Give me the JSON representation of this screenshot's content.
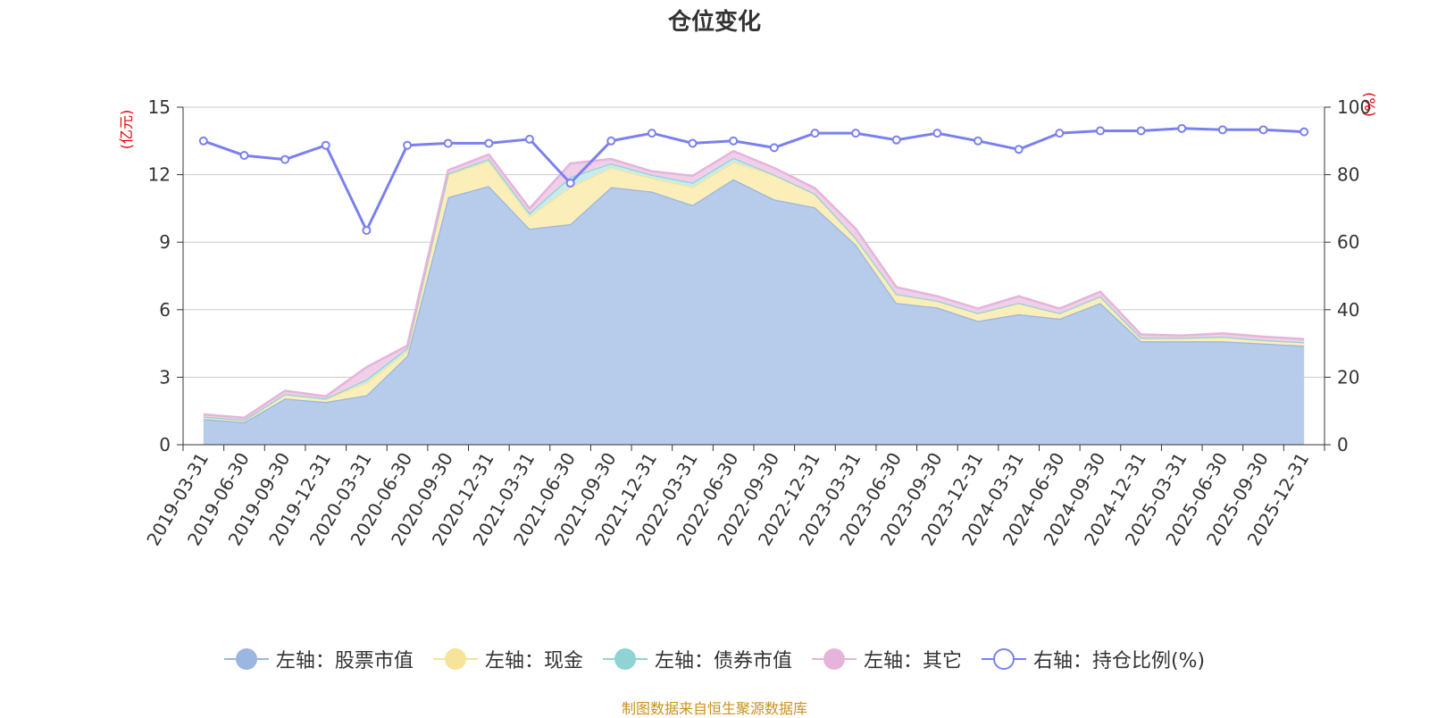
{
  "title": "仓位变化",
  "source": "制图数据来自恒生聚源数据库",
  "colors": {
    "stock": "#9bb6e0",
    "stock_fill": "#b7cbea",
    "cash": "#f7e49a",
    "cash_fill": "#fbeeb8",
    "bond": "#8fd3d3",
    "bond_fill": "#c9ebe9",
    "other": "#e6b4db",
    "other_fill": "#f0cfe8",
    "ratio": "#7b80f0",
    "axis_unit": "#e00000"
  },
  "chart_data": {
    "type": "area",
    "title": "仓位变化",
    "x": [
      "2019-03-31",
      "2019-06-30",
      "2019-09-30",
      "2019-12-31",
      "2020-03-31",
      "2020-06-30",
      "2020-09-30",
      "2020-12-31",
      "2021-03-31",
      "2021-06-30",
      "2021-09-30",
      "2021-12-31",
      "2022-03-31",
      "2022-06-30",
      "2022-09-30",
      "2022-12-31",
      "2023-03-31",
      "2023-06-30",
      "2023-09-30",
      "2023-12-31",
      "2024-03-31",
      "2024-06-30",
      "2024-09-30",
      "2024-12-31",
      "2025-03-31",
      "2025-06-30",
      "2025-09-30",
      "2025-12-31"
    ],
    "y_left": {
      "unit": "(亿元)",
      "ylim": [
        0,
        15
      ],
      "ticks": [
        "0",
        "3",
        "6",
        "9",
        "12",
        "15"
      ]
    },
    "y_right": {
      "unit": "(%)",
      "ylim": [
        0,
        100
      ],
      "ticks": [
        "0",
        "20",
        "40",
        "60",
        "80",
        "100"
      ]
    },
    "stacked": true,
    "grid": true,
    "legend_position": "bottom",
    "series": [
      {
        "name": "左轴：股票市值",
        "axis": "left",
        "type": "area",
        "values": [
          1.15,
          1.0,
          2.05,
          1.9,
          2.2,
          3.95,
          11.0,
          11.5,
          9.6,
          9.8,
          11.45,
          11.25,
          10.65,
          11.8,
          10.9,
          10.55,
          8.9,
          6.3,
          6.1,
          5.5,
          5.8,
          5.6,
          6.3,
          4.6,
          4.6,
          4.6,
          4.5,
          4.4
        ]
      },
      {
        "name": "左轴：现金",
        "axis": "left",
        "type": "area",
        "values": [
          0.1,
          0.1,
          0.2,
          0.15,
          0.55,
          0.2,
          1.0,
          1.1,
          0.55,
          1.65,
          0.85,
          0.6,
          0.8,
          0.75,
          1.1,
          0.6,
          0.3,
          0.4,
          0.3,
          0.35,
          0.5,
          0.25,
          0.3,
          0.15,
          0.15,
          0.2,
          0.15,
          0.15
        ]
      },
      {
        "name": "左轴：债券市值",
        "axis": "left",
        "type": "area",
        "values": [
          0.0,
          0.0,
          0.0,
          0.0,
          0.15,
          0.15,
          0.05,
          0.1,
          0.15,
          0.45,
          0.2,
          0.15,
          0.2,
          0.2,
          0.0,
          0.0,
          0.0,
          0.0,
          0.0,
          0.0,
          0.0,
          0.0,
          0.0,
          0.0,
          0.0,
          0.0,
          0.0,
          0.0
        ]
      },
      {
        "name": "左轴：其它",
        "axis": "left",
        "type": "area",
        "values": [
          0.1,
          0.1,
          0.15,
          0.1,
          0.55,
          0.1,
          0.15,
          0.2,
          0.2,
          0.6,
          0.2,
          0.15,
          0.3,
          0.3,
          0.3,
          0.25,
          0.4,
          0.3,
          0.2,
          0.2,
          0.3,
          0.2,
          0.2,
          0.15,
          0.1,
          0.15,
          0.15,
          0.15
        ]
      },
      {
        "name": "右轴：持仓比例(%)",
        "axis": "right",
        "type": "line",
        "values": [
          90,
          85.7,
          84.5,
          88.7,
          63.5,
          88.7,
          89.3,
          89.3,
          90.5,
          77.5,
          90,
          92.3,
          89.3,
          90,
          88,
          92.3,
          92.3,
          90.3,
          92.3,
          90,
          87.5,
          92.3,
          93,
          93,
          93.7,
          93.3,
          93.3,
          92.7
        ]
      }
    ]
  }
}
